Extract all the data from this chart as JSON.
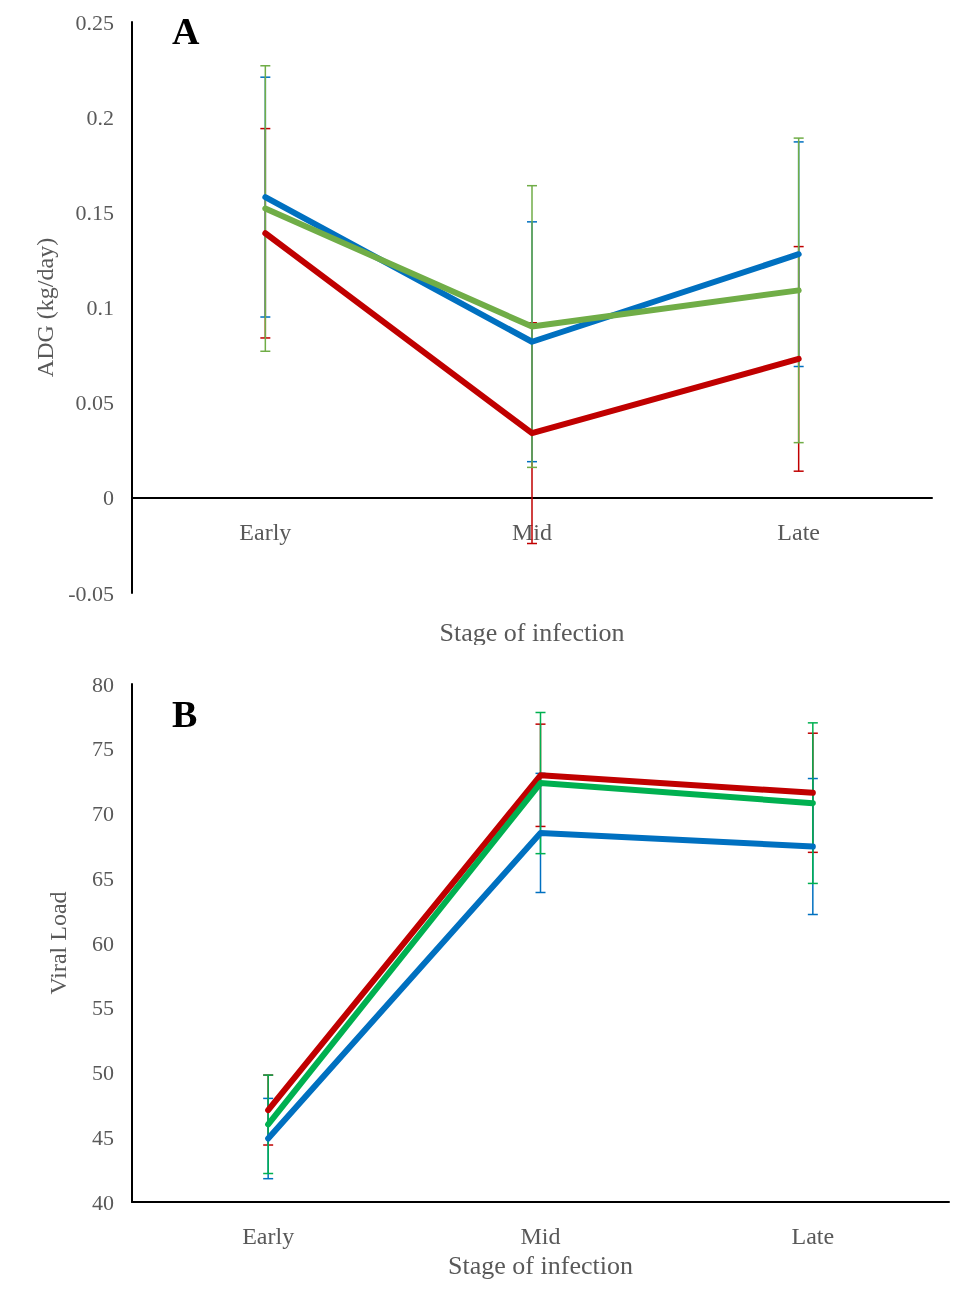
{
  "chart_data": [
    {
      "type": "line",
      "xlabel": "Stage of infection",
      "ylabel": "ADG (kg/day)",
      "annotations": [
        "A"
      ],
      "categories": [
        "Early",
        "Mid",
        "Late"
      ],
      "ylim": [
        -0.05,
        0.25
      ],
      "yticks": [
        -0.05,
        0,
        0.05,
        0.1,
        0.15,
        0.2,
        0.25
      ],
      "marker": "none",
      "series": [
        {
          "color": "#c00000",
          "values": [
            0.139,
            0.034,
            0.073
          ],
          "errors": [
            0.055,
            0.058,
            0.059
          ]
        },
        {
          "color": "#0070c0",
          "values": [
            0.158,
            0.082,
            0.128
          ],
          "errors": [
            0.063,
            0.063,
            0.059
          ]
        },
        {
          "color": "#70ad47",
          "values": [
            0.152,
            0.09,
            0.109
          ],
          "errors": [
            0.075,
            0.074,
            0.08
          ]
        }
      ]
    },
    {
      "type": "line",
      "xlabel": "Stage of infection",
      "ylabel": "Viral Load",
      "annotations": [
        "B"
      ],
      "categories": [
        "Early",
        "Mid",
        "Late"
      ],
      "ylim": [
        40,
        80
      ],
      "yticks": [
        40,
        45,
        50,
        55,
        60,
        65,
        70,
        75,
        80
      ],
      "marker": "none",
      "series": [
        {
          "color": "#c00000",
          "values": [
            47.1,
            72.95,
            71.6
          ],
          "errors": [
            2.7,
            3.95,
            4.6
          ]
        },
        {
          "color": "#0070c0",
          "values": [
            44.9,
            68.5,
            67.45
          ],
          "errors": [
            3.1,
            4.6,
            5.25
          ]
        },
        {
          "color": "#00b050",
          "values": [
            46,
            72.35,
            70.8
          ],
          "errors": [
            3.8,
            5.45,
            6.2
          ]
        }
      ]
    }
  ]
}
